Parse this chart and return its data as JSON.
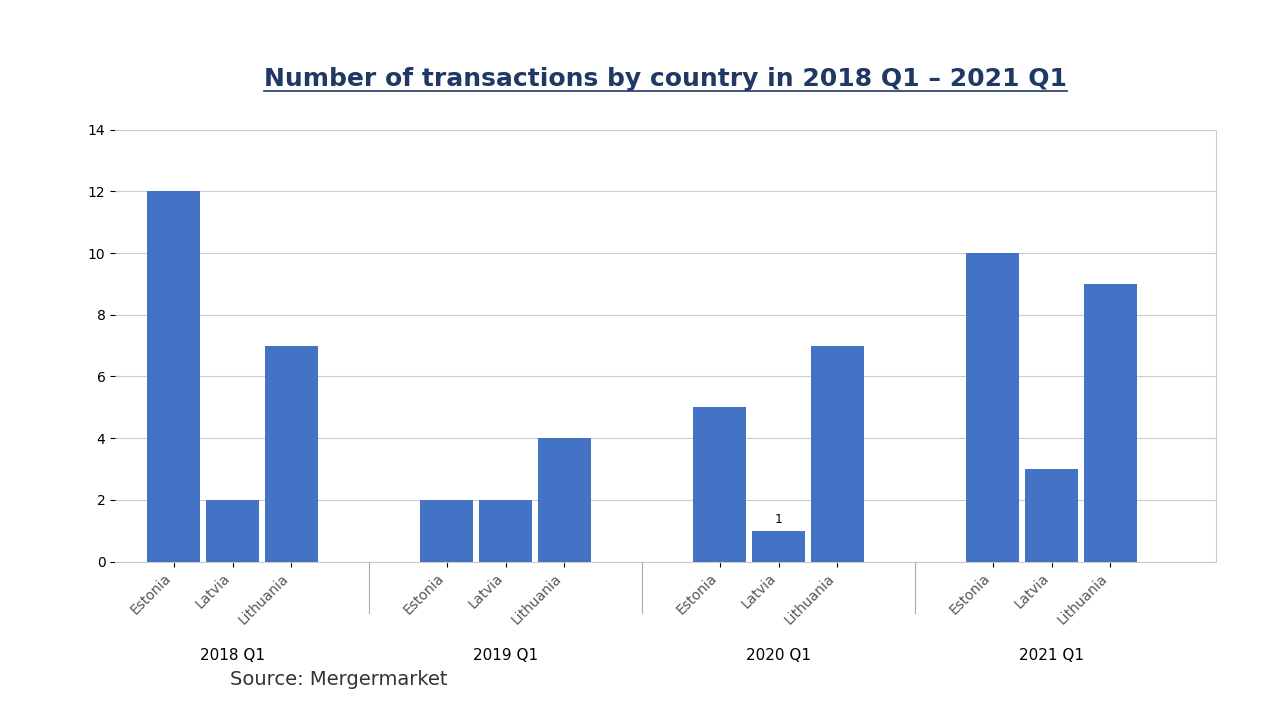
{
  "title": "Number of transactions by country in 2018 Q1 – 2021 Q1",
  "source": "Source: Mergermarket",
  "quarters": [
    "2018 Q1",
    "2019 Q1",
    "2020 Q1",
    "2021 Q1"
  ],
  "countries": [
    "Estonia",
    "Latvia",
    "Lithuania"
  ],
  "values": {
    "2018 Q1": [
      12,
      2,
      7
    ],
    "2019 Q1": [
      2,
      2,
      4
    ],
    "2020 Q1": [
      5,
      1,
      7
    ],
    "2021 Q1": [
      10,
      3,
      9
    ]
  },
  "bar_color": "#4472C4",
  "ylim": [
    0,
    14
  ],
  "yticks": [
    0,
    2,
    4,
    6,
    8,
    10,
    12,
    14
  ],
  "annotate_quarter": "2020 Q1",
  "annotate_country": "Latvia",
  "background_color": "#ffffff",
  "chart_bg": "#ffffff",
  "title_color": "#1F3864",
  "title_fontsize": 18,
  "source_fontsize": 14,
  "tick_fontsize": 10,
  "group_label_fontsize": 11
}
